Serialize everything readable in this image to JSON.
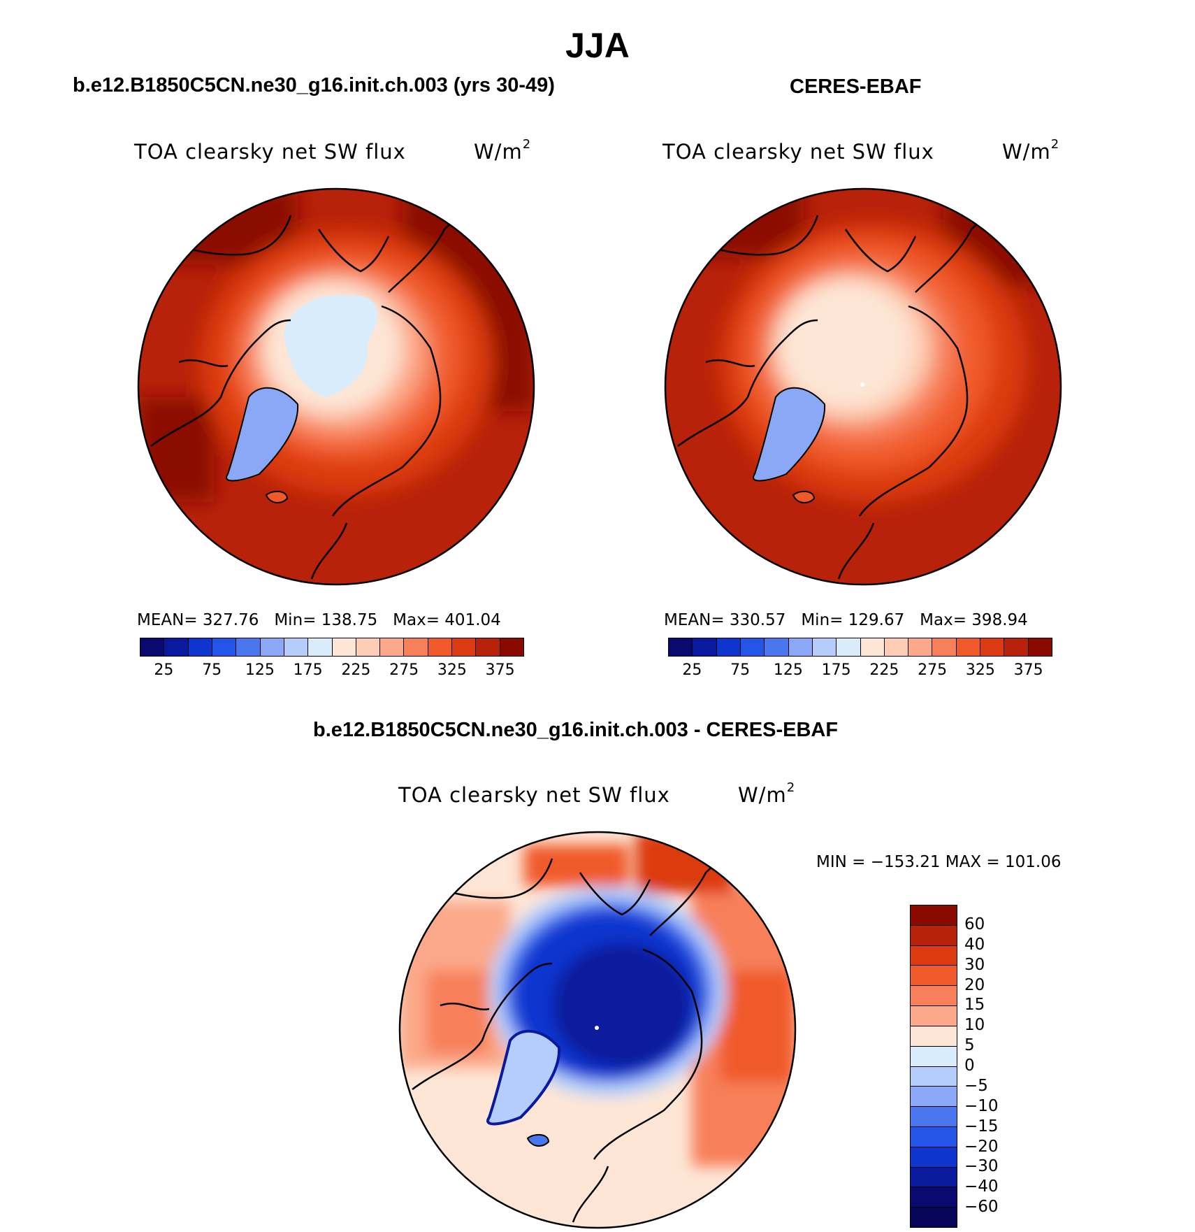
{
  "title": "JJA",
  "panels": [
    {
      "title": "b.e12.B1850C5CN.ne30_g16.init.ch.003 (yrs 30-49)",
      "variable": "TOA clearsky net SW flux",
      "units_base": "W/m",
      "units_exp": "2",
      "stats": {
        "mean_label": "MEAN=",
        "mean": "327.76",
        "min_label": "Min=",
        "min": "138.75",
        "max_label": "Max=",
        "max": "401.04"
      }
    },
    {
      "title": "CERES-EBAF",
      "variable": "TOA clearsky net SW flux",
      "units_base": "W/m",
      "units_exp": "2",
      "stats": {
        "mean_label": "MEAN=",
        "mean": "330.57",
        "min_label": "Min=",
        "min": "129.67",
        "max_label": "Max=",
        "max": "398.94"
      }
    }
  ],
  "difference": {
    "title": "b.e12.B1850C5CN.ne30_g16.init.ch.003 - CERES-EBAF",
    "variable": "TOA clearsky net SW flux",
    "units_base": "W/m",
    "units_exp": "2",
    "range_text": "MIN = −153.21  MAX = 101.06"
  },
  "chart_data": [
    {
      "type": "heatmap",
      "projection": "north polar stereographic",
      "title": "b.e12.B1850C5CN.ne30_g16.init.ch.003 (yrs 30-49)",
      "field": "TOA clearsky net SW flux",
      "units": "W/m2",
      "mean": 327.76,
      "min": 138.75,
      "max": 401.04,
      "colorbar_ticks": [
        "25",
        "75",
        "125",
        "175",
        "225",
        "275",
        "325",
        "375"
      ],
      "colors": [
        "#0a0a6e",
        "#0a1a9e",
        "#0f35cf",
        "#2455e8",
        "#4a76f0",
        "#8aa8f5",
        "#b4cdfa",
        "#d8ecfb",
        "#fde6d6",
        "#fccdb4",
        "#fba98a",
        "#f7805a",
        "#f05a2a",
        "#dc3a10",
        "#b8220a",
        "#8b0a00"
      ]
    },
    {
      "type": "heatmap",
      "projection": "north polar stereographic",
      "title": "CERES-EBAF",
      "field": "TOA clearsky net SW flux",
      "units": "W/m2",
      "mean": 330.57,
      "min": 129.67,
      "max": 398.94,
      "colorbar_ticks": [
        "25",
        "75",
        "125",
        "175",
        "225",
        "275",
        "325",
        "375"
      ],
      "colors": [
        "#0a0a6e",
        "#0a1a9e",
        "#0f35cf",
        "#2455e8",
        "#4a76f0",
        "#8aa8f5",
        "#b4cdfa",
        "#d8ecfb",
        "#fde6d6",
        "#fccdb4",
        "#fba98a",
        "#f7805a",
        "#f05a2a",
        "#dc3a10",
        "#b8220a",
        "#8b0a00"
      ]
    },
    {
      "type": "heatmap",
      "projection": "north polar stereographic",
      "title": "b.e12.B1850C5CN.ne30_g16.init.ch.003 - CERES-EBAF",
      "field": "TOA clearsky net SW flux",
      "units": "W/m2",
      "min": -153.21,
      "max": 101.06,
      "colorbar_ticks": [
        "60",
        "40",
        "30",
        "20",
        "15",
        "10",
        "5",
        "0",
        "−5",
        "−10",
        "−15",
        "−20",
        "−30",
        "−40",
        "−60"
      ],
      "colors": [
        "#8b0a00",
        "#b8220a",
        "#dc3a10",
        "#f05a2a",
        "#f7805a",
        "#fba98a",
        "#fde6d6",
        "#d8ecfb",
        "#b4cdfa",
        "#8aa8f5",
        "#4a76f0",
        "#2455e8",
        "#0f35cf",
        "#0a1a9e",
        "#0a0a6e",
        "#05055a"
      ]
    }
  ]
}
